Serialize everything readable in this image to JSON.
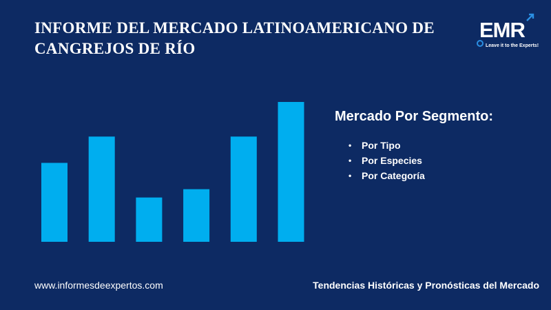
{
  "header": {
    "title_line1": "INFORME DEL MERCADO LATINOAMERICANO DE",
    "title_line2": "CANGREJOS DE RÍO"
  },
  "logo": {
    "mark": "EMR",
    "tagline": "Leave it to the Experts!"
  },
  "segment": {
    "heading": "Mercado Por Segmento:",
    "items": [
      "Por Tipo",
      "Por Especies",
      "Por Categoría"
    ]
  },
  "footer": {
    "website": "www.informesdeexpertos.com",
    "tagline": "Tendencias Históricas y Pronósticas del Mercado"
  },
  "colors": {
    "background": "#0d2a63",
    "bar": "#00aeef",
    "text": "#ffffff"
  },
  "chart_data": {
    "type": "bar",
    "categories": [
      "",
      "",
      "",
      "",
      "",
      ""
    ],
    "values": [
      57,
      76,
      32,
      38,
      76,
      101
    ],
    "ylim": [
      0,
      101
    ],
    "grid": false
  }
}
